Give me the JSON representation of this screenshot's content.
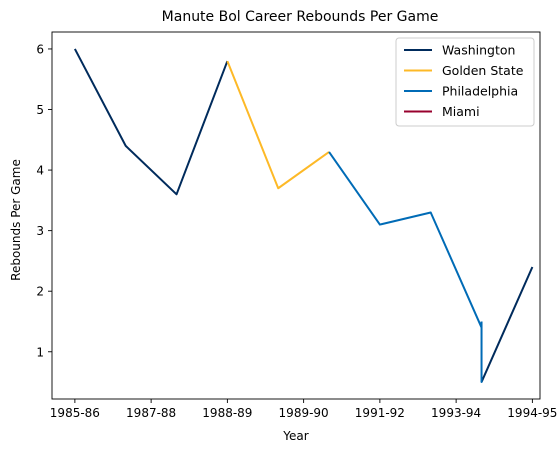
{
  "chart_data": {
    "type": "line",
    "title": "Manute Bol Career Rebounds Per Game",
    "xlabel": "Year",
    "ylabel": "Rebounds Per Game",
    "x_tick_labels": [
      "1985-86",
      "1987-88",
      "1988-89",
      "1989-90",
      "1991-92",
      "1993-94",
      "1994-95"
    ],
    "y_ticks": [
      1,
      2,
      3,
      4,
      5,
      6
    ],
    "ylim": [
      0.22,
      6.28
    ],
    "xlim": [
      -0.45,
      9.15
    ],
    "legend_position": "top-right",
    "grid": false,
    "series": [
      {
        "name": "Washington",
        "color": "#002B5C",
        "points": [
          [
            0,
            6.0
          ],
          [
            1,
            4.4
          ],
          [
            2,
            3.6
          ],
          [
            3,
            5.8
          ],
          [
            null,
            null
          ],
          [
            8,
            0.5
          ],
          [
            9,
            2.4
          ]
        ]
      },
      {
        "name": "Golden State",
        "color": "#FDB927",
        "points": [
          [
            3,
            5.8
          ],
          [
            4,
            3.7
          ],
          [
            5,
            4.3
          ]
        ]
      },
      {
        "name": "Philadelphia",
        "color": "#006BB6",
        "points": [
          [
            5,
            4.3
          ],
          [
            6,
            3.1
          ],
          [
            7,
            3.3
          ],
          [
            8,
            1.4
          ],
          [
            8,
            0.5
          ],
          [
            8,
            1.5
          ]
        ]
      },
      {
        "name": "Miami",
        "color": "#98002E",
        "points": []
      }
    ]
  }
}
